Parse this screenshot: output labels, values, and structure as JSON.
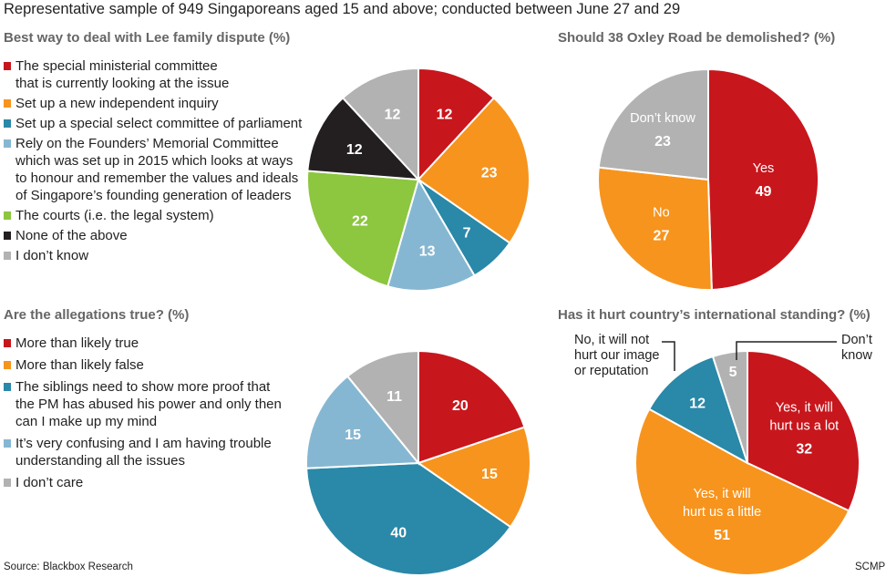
{
  "header": "Representative sample of 949 Singaporeans aged 15 and above; conducted between June 27 and 29",
  "source": "Source: Blackbox Research",
  "credit": "SCMP",
  "colors": {
    "red": "#c8161d",
    "orange": "#f7941d",
    "teal": "#2a88a8",
    "lightblue": "#86b7d2",
    "green": "#8dc63f",
    "black": "#231f20",
    "grey": "#b2b2b2"
  },
  "chart_data": [
    {
      "type": "pie",
      "title": "Best way to deal with Lee family dispute (%)",
      "legend": [
        {
          "lines": [
            "The special ministerial committee",
            "that is currently looking at the issue"
          ],
          "color": "#c8161d"
        },
        {
          "lines": [
            "Set up a new independent inquiry"
          ],
          "color": "#f7941d"
        },
        {
          "lines": [
            "Set up a special select committee of parliament"
          ],
          "color": "#2a88a8"
        },
        {
          "lines": [
            "Rely on the Founders’ Memorial Committee",
            "which was set up in 2015 which looks at ways",
            "to honour and remember the values and ideals",
            "of Singapore’s founding generation of leaders"
          ],
          "color": "#86b7d2"
        },
        {
          "lines": [
            "The courts (i.e. the legal system)"
          ],
          "color": "#8dc63f"
        },
        {
          "lines": [
            "None of the above"
          ],
          "color": "#231f20"
        },
        {
          "lines": [
            "I don’t know"
          ],
          "color": "#b2b2b2"
        }
      ],
      "slices": [
        {
          "value": 12,
          "color": "#c8161d"
        },
        {
          "value": 23,
          "color": "#f7941d"
        },
        {
          "value": 7,
          "color": "#2a88a8"
        },
        {
          "value": 13,
          "color": "#86b7d2"
        },
        {
          "value": 22,
          "color": "#8dc63f"
        },
        {
          "value": 12,
          "color": "#231f20"
        },
        {
          "value": 12,
          "color": "#b2b2b2"
        }
      ]
    },
    {
      "type": "pie",
      "title": "Should 38 Oxley Road be demolished? (%)",
      "slices": [
        {
          "label": "Yes",
          "value": 49,
          "color": "#c8161d"
        },
        {
          "label": "No",
          "value": 27,
          "color": "#f7941d"
        },
        {
          "label": "Don’t know",
          "value": 23,
          "color": "#b2b2b2"
        }
      ]
    },
    {
      "type": "pie",
      "title": "Are the allegations true? (%)",
      "legend": [
        {
          "lines": [
            "More than likely true"
          ],
          "color": "#c8161d"
        },
        {
          "lines": [
            "More than likely false"
          ],
          "color": "#f7941d"
        },
        {
          "lines": [
            "The siblings need to show more proof that",
            "the PM has abused his power and only then",
            "can I make up my mind"
          ],
          "color": "#2a88a8"
        },
        {
          "lines": [
            "It’s very confusing and I am having trouble",
            "understanding all the issues"
          ],
          "color": "#86b7d2"
        },
        {
          "lines": [
            "I don’t care"
          ],
          "color": "#b2b2b2"
        }
      ],
      "slices": [
        {
          "value": 20,
          "color": "#c8161d"
        },
        {
          "value": 15,
          "color": "#f7941d"
        },
        {
          "value": 40,
          "color": "#2a88a8"
        },
        {
          "value": 15,
          "color": "#86b7d2"
        },
        {
          "value": 11,
          "color": "#b2b2b2"
        }
      ]
    },
    {
      "type": "pie",
      "title": "Has it hurt country’s international standing? (%)",
      "slices": [
        {
          "label": [
            "Yes, it will",
            "hurt us a lot"
          ],
          "value": 32,
          "color": "#c8161d"
        },
        {
          "label": [
            "Yes, it will",
            "hurt us a little"
          ],
          "value": 51,
          "color": "#f7941d"
        },
        {
          "label": [
            "No, it will not",
            "hurt our image",
            "or reputation"
          ],
          "value": 12,
          "color": "#2a88a8"
        },
        {
          "label": [
            "Don’t",
            "know"
          ],
          "value": 5,
          "color": "#b2b2b2"
        }
      ]
    }
  ]
}
